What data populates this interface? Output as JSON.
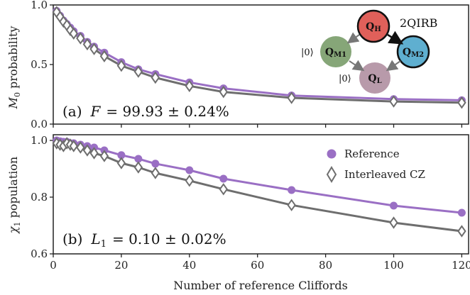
{
  "chart_data": [
    {
      "type": "line",
      "panel_label": "(a)",
      "annotation_var": "F",
      "annotation_value": "= 99.93 ± 0.24%",
      "ylabel_main": "M",
      "ylabel_sub": "0",
      "ylabel_rest": " probability",
      "ylim": [
        0.0,
        1.0
      ],
      "yticks": [
        "0.0",
        "0.5",
        "1.0"
      ],
      "xlim": [
        0,
        122
      ],
      "series": [
        {
          "name": "Reference",
          "color": "#9a6fc4",
          "marker": "circle",
          "x": [
            1,
            2,
            3,
            4,
            5,
            6,
            8,
            10,
            12,
            15,
            20,
            25,
            30,
            40,
            50,
            70,
            100,
            120
          ],
          "y": [
            0.95,
            0.91,
            0.87,
            0.84,
            0.81,
            0.78,
            0.74,
            0.69,
            0.65,
            0.6,
            0.52,
            0.46,
            0.42,
            0.35,
            0.3,
            0.24,
            0.21,
            0.2
          ]
        },
        {
          "name": "Interleaved CZ",
          "color": "#6e6e6e",
          "marker": "diamond",
          "x": [
            1,
            2,
            3,
            4,
            5,
            6,
            8,
            10,
            12,
            15,
            20,
            25,
            30,
            40,
            50,
            70,
            100,
            120
          ],
          "y": [
            0.94,
            0.9,
            0.86,
            0.83,
            0.79,
            0.76,
            0.72,
            0.67,
            0.63,
            0.57,
            0.49,
            0.44,
            0.39,
            0.32,
            0.27,
            0.22,
            0.19,
            0.18
          ]
        }
      ],
      "diagram": {
        "title": "2QIRB",
        "nodes": [
          {
            "label": "Q",
            "sub": "H",
            "color": "#e0605a"
          },
          {
            "label": "Q",
            "sub": "M2",
            "color": "#5fafd0"
          },
          {
            "label": "Q",
            "sub": "M1",
            "color": "#86a678"
          },
          {
            "label": "Q",
            "sub": "L",
            "color": "#b89aaa"
          }
        ],
        "ket_m1": "|0⟩",
        "ket_l": "|0⟩"
      }
    },
    {
      "type": "line",
      "panel_label": "(b)",
      "annotation_var": "L",
      "annotation_sub": "1",
      "annotation_value": "= 0.10 ± 0.02%",
      "ylabel_main": "χ",
      "ylabel_sub": "1",
      "ylabel_rest": " population",
      "ylim": [
        0.6,
        1.02
      ],
      "yticks": [
        "0.6",
        "0.8",
        "1.0"
      ],
      "xlim": [
        0,
        122
      ],
      "xticks": [
        "0",
        "20",
        "40",
        "60",
        "80",
        "100",
        "120"
      ],
      "xlabel": "Number of reference Cliffords",
      "legend": {
        "position": "top-right"
      },
      "series": [
        {
          "name": "Reference",
          "color": "#9a6fc4",
          "marker": "circle",
          "x": [
            1,
            2,
            3,
            4,
            5,
            6,
            8,
            10,
            12,
            15,
            20,
            25,
            30,
            40,
            50,
            70,
            100,
            120
          ],
          "y": [
            1.0,
            0.997,
            0.995,
            0.995,
            0.99,
            0.99,
            0.985,
            0.98,
            0.975,
            0.965,
            0.948,
            0.935,
            0.918,
            0.895,
            0.865,
            0.825,
            0.77,
            0.745
          ]
        },
        {
          "name": "Interleaved CZ",
          "color": "#6e6e6e",
          "marker": "diamond",
          "x": [
            1,
            2,
            3,
            4,
            5,
            6,
            8,
            10,
            12,
            15,
            20,
            25,
            30,
            40,
            50,
            70,
            100,
            120
          ],
          "y": [
            0.99,
            0.985,
            0.98,
            0.99,
            0.985,
            0.98,
            0.975,
            0.965,
            0.955,
            0.945,
            0.92,
            0.905,
            0.885,
            0.858,
            0.828,
            0.772,
            0.71,
            0.68
          ]
        }
      ]
    }
  ]
}
